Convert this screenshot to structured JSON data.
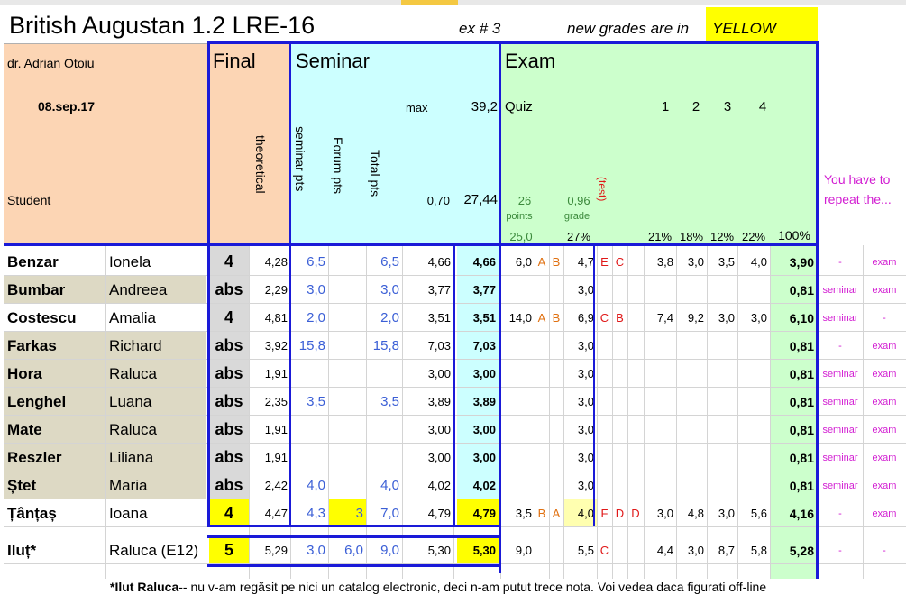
{
  "title": "British Augustan 1.2 LRE-16",
  "exercise": "ex # 3",
  "notice_prefix": "new grades are in",
  "notice_highlight": "YELLOW",
  "teacher": "dr. Adrian Otoiu",
  "date": "08.sep.17",
  "student_label": "Student",
  "sections": {
    "final": "Final",
    "seminar": "Seminar",
    "exam": "Exam"
  },
  "seminar_headers": {
    "theoretical": "theoretical",
    "seminar_pts": "seminar pts",
    "forum_pts": "Forum pts",
    "total_pts": "Total pts",
    "max_label": "max",
    "max_value": "39,2",
    "ratio": "0,70",
    "ratio_total": "27,44"
  },
  "exam_headers": {
    "quiz": "Quiz",
    "q1": "1",
    "q2": "2",
    "q3": "3",
    "q4": "4",
    "points_value": "26",
    "points_label": "points",
    "grade_value": "0,96",
    "grade_label": "grade",
    "test_label": "(test)",
    "pts_base": "25,0",
    "grade_pct": "27%",
    "w1": "21%",
    "w2": "18%",
    "w3": "12%",
    "w4": "22%",
    "total_pct": "100%"
  },
  "repeat_note": "You have to repeat the...",
  "colors": {
    "final_bg": "#fcd5b4",
    "seminar_bg": "#ccffff",
    "exam_bg": "#ccffcc",
    "yellow": "#ffff00",
    "name_bg": "#ddd9c4",
    "border_blue": "#1a1ad8"
  },
  "students": [
    {
      "last": "Benzar",
      "first": "Ionela",
      "final": "4",
      "theo": "4,28",
      "sem": "6,5",
      "forum": "",
      "total": "6,5",
      "v": "4,66",
      "grade": "4,66",
      "quiz": "6,0",
      "m1": "A",
      "m2": "B",
      "pg": "4,7",
      "t1": "E",
      "t2": "C",
      "t3": "",
      "e1": "3,8",
      "e2": "3,0",
      "e3": "3,5",
      "e4": "4,0",
      "exam": "3,90",
      "rep1": "-",
      "rep2": "exam"
    },
    {
      "last": "Bumbar",
      "first": "Andreea",
      "final": "abs",
      "theo": "2,29",
      "sem": "3,0",
      "forum": "",
      "total": "3,0",
      "v": "3,77",
      "grade": "3,77",
      "quiz": "",
      "m1": "",
      "m2": "",
      "pg": "3,0",
      "t1": "",
      "t2": "",
      "t3": "",
      "e1": "",
      "e2": "",
      "e3": "",
      "e4": "",
      "exam": "0,81",
      "rep1": "seminar",
      "rep2": "exam"
    },
    {
      "last": "Costescu",
      "first": "Amalia",
      "final": "4",
      "theo": "4,81",
      "sem": "2,0",
      "forum": "",
      "total": "2,0",
      "v": "3,51",
      "grade": "3,51",
      "quiz": "14,0",
      "m1": "A",
      "m2": "B",
      "pg": "6,9",
      "t1": "C",
      "t2": "B",
      "t3": "",
      "e1": "7,4",
      "e2": "9,2",
      "e3": "3,0",
      "e4": "3,0",
      "exam": "6,10",
      "rep1": "seminar",
      "rep2": "-"
    },
    {
      "last": "Farkas",
      "first": "Richard",
      "final": "abs",
      "theo": "3,92",
      "sem": "15,8",
      "forum": "",
      "total": "15,8",
      "v": "7,03",
      "grade": "7,03",
      "quiz": "",
      "m1": "",
      "m2": "",
      "pg": "3,0",
      "t1": "",
      "t2": "",
      "t3": "",
      "e1": "",
      "e2": "",
      "e3": "",
      "e4": "",
      "exam": "0,81",
      "rep1": "-",
      "rep2": "exam"
    },
    {
      "last": "Hora",
      "first": "Raluca",
      "final": "abs",
      "theo": "1,91",
      "sem": "",
      "forum": "",
      "total": "",
      "v": "3,00",
      "grade": "3,00",
      "quiz": "",
      "m1": "",
      "m2": "",
      "pg": "3,0",
      "t1": "",
      "t2": "",
      "t3": "",
      "e1": "",
      "e2": "",
      "e3": "",
      "e4": "",
      "exam": "0,81",
      "rep1": "seminar",
      "rep2": "exam"
    },
    {
      "last": "Lenghel",
      "first": "Luana",
      "final": "abs",
      "theo": "2,35",
      "sem": "3,5",
      "forum": "",
      "total": "3,5",
      "v": "3,89",
      "grade": "3,89",
      "quiz": "",
      "m1": "",
      "m2": "",
      "pg": "3,0",
      "t1": "",
      "t2": "",
      "t3": "",
      "e1": "",
      "e2": "",
      "e3": "",
      "e4": "",
      "exam": "0,81",
      "rep1": "seminar",
      "rep2": "exam"
    },
    {
      "last": "Mate",
      "first": "Raluca",
      "final": "abs",
      "theo": "1,91",
      "sem": "",
      "forum": "",
      "total": "",
      "v": "3,00",
      "grade": "3,00",
      "quiz": "",
      "m1": "",
      "m2": "",
      "pg": "3,0",
      "t1": "",
      "t2": "",
      "t3": "",
      "e1": "",
      "e2": "",
      "e3": "",
      "e4": "",
      "exam": "0,81",
      "rep1": "seminar",
      "rep2": "exam"
    },
    {
      "last": "Reszler",
      "first": "Liliana",
      "final": "abs",
      "theo": "1,91",
      "sem": "",
      "forum": "",
      "total": "",
      "v": "3,00",
      "grade": "3,00",
      "quiz": "",
      "m1": "",
      "m2": "",
      "pg": "3,0",
      "t1": "",
      "t2": "",
      "t3": "",
      "e1": "",
      "e2": "",
      "e3": "",
      "e4": "",
      "exam": "0,81",
      "rep1": "seminar",
      "rep2": "exam"
    },
    {
      "last": "Ștet",
      "first": "Maria",
      "final": "abs",
      "theo": "2,42",
      "sem": "4,0",
      "forum": "",
      "total": "4,0",
      "v": "4,02",
      "grade": "4,02",
      "quiz": "",
      "m1": "",
      "m2": "",
      "pg": "3,0",
      "t1": "",
      "t2": "",
      "t3": "",
      "e1": "",
      "e2": "",
      "e3": "",
      "e4": "",
      "exam": "0,81",
      "rep1": "seminar",
      "rep2": "exam"
    },
    {
      "last": "Țânțaș",
      "first": "Ioana",
      "final": "4",
      "theo": "4,47",
      "sem": "4,3",
      "forum": "3",
      "total": "7,0",
      "v": "4,79",
      "grade": "4,79",
      "quiz": "3,5",
      "m1": "B",
      "m2": "A",
      "pg": "4,0",
      "t1": "F",
      "t2": "D",
      "t3": "D",
      "e1": "3,0",
      "e2": "4,8",
      "e3": "3,0",
      "e4": "5,6",
      "exam": "4,16",
      "rep1": "-",
      "rep2": "exam"
    },
    {
      "last": "Iluț*",
      "first": "Raluca (E12)",
      "final": "5",
      "theo": "5,29",
      "sem": "3,0",
      "forum": "6,0",
      "total": "9,0",
      "v": "5,30",
      "grade": "5,30",
      "quiz": "9,0",
      "m1": "",
      "m2": "",
      "pg": "5,5",
      "t1": "C",
      "t2": "",
      "t3": "",
      "e1": "4,4",
      "e2": "3,0",
      "e3": "8,7",
      "e4": "5,8",
      "exam": "5,28",
      "rep1": "-",
      "rep2": "-"
    }
  ],
  "footnote_bold": "*Ilut Raluca",
  "footnote_text": " -- nu v-am regăsit pe nici un catalog electronic, deci n-am putut trece nota. Voi vedea daca figurati off-line"
}
